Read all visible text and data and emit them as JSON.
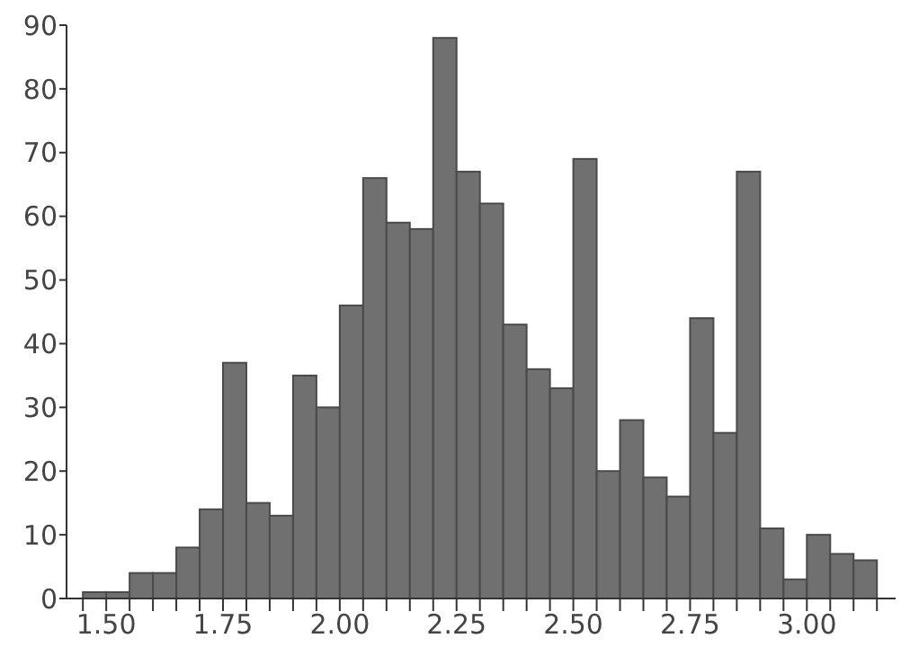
{
  "chart_data": {
    "type": "histogram",
    "bins": [
      1.45,
      1.5,
      1.55,
      1.6,
      1.65,
      1.7,
      1.75,
      1.8,
      1.85,
      1.9,
      1.95,
      2.0,
      2.05,
      2.1,
      2.15,
      2.2,
      2.25,
      2.3,
      2.35,
      2.4,
      2.45,
      2.5,
      2.55,
      2.6,
      2.65,
      2.7,
      2.75,
      2.8,
      2.85,
      2.9,
      2.95,
      3.0,
      3.05,
      3.1,
      3.15
    ],
    "values": [
      1,
      1,
      4,
      4,
      8,
      14,
      37,
      15,
      13,
      35,
      30,
      46,
      66,
      59,
      58,
      88,
      67,
      62,
      43,
      36,
      33,
      69,
      20,
      28,
      19,
      16,
      44,
      26,
      67,
      11,
      3,
      10,
      7,
      6
    ],
    "color": "#707070",
    "xlim": [
      1.415,
      3.19
    ],
    "xticks": [
      {
        "value": 1.45,
        "label": null
      },
      {
        "value": 1.5,
        "label": "1.50"
      },
      {
        "value": 1.55,
        "label": null
      },
      {
        "value": 1.6,
        "label": null
      },
      {
        "value": 1.65,
        "label": null
      },
      {
        "value": 1.7,
        "label": null
      },
      {
        "value": 1.75,
        "label": "1.75"
      },
      {
        "value": 1.8,
        "label": null
      },
      {
        "value": 1.85,
        "label": null
      },
      {
        "value": 1.9,
        "label": null
      },
      {
        "value": 1.95,
        "label": null
      },
      {
        "value": 2.0,
        "label": "2.00"
      },
      {
        "value": 2.05,
        "label": null
      },
      {
        "value": 2.1,
        "label": null
      },
      {
        "value": 2.15,
        "label": null
      },
      {
        "value": 2.2,
        "label": null
      },
      {
        "value": 2.25,
        "label": "2.25"
      },
      {
        "value": 2.3,
        "label": null
      },
      {
        "value": 2.35,
        "label": null
      },
      {
        "value": 2.4,
        "label": null
      },
      {
        "value": 2.45,
        "label": null
      },
      {
        "value": 2.5,
        "label": "2.50"
      },
      {
        "value": 2.55,
        "label": null
      },
      {
        "value": 2.6,
        "label": null
      },
      {
        "value": 2.65,
        "label": null
      },
      {
        "value": 2.7,
        "label": null
      },
      {
        "value": 2.75,
        "label": "2.75"
      },
      {
        "value": 2.8,
        "label": null
      },
      {
        "value": 2.85,
        "label": null
      },
      {
        "value": 2.9,
        "label": null
      },
      {
        "value": 2.95,
        "label": null
      },
      {
        "value": 3.0,
        "label": "3.00"
      },
      {
        "value": 3.05,
        "label": null
      },
      {
        "value": 3.1,
        "label": null
      },
      {
        "value": 3.15,
        "label": null
      }
    ],
    "ylim": [
      0,
      90
    ],
    "yticks": [
      0,
      10,
      20,
      30,
      40,
      50,
      60,
      70,
      80,
      90
    ]
  }
}
